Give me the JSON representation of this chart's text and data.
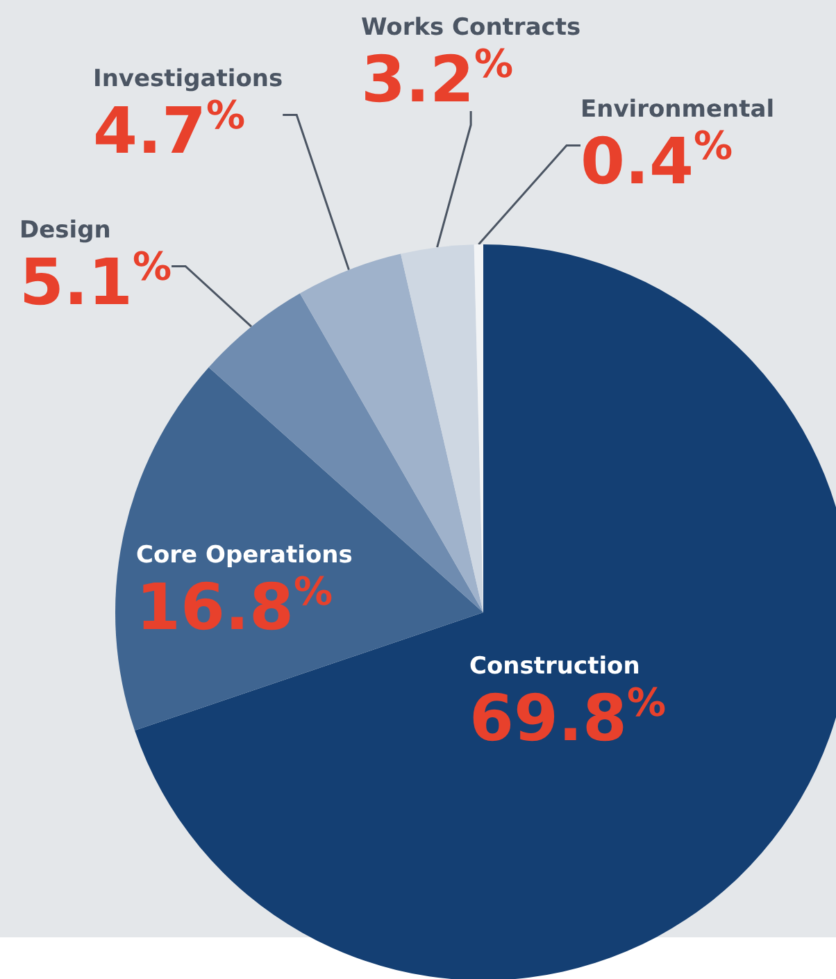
{
  "chart_data": {
    "type": "pie",
    "categories": [
      "Construction",
      "Core Operations",
      "Design",
      "Investigations",
      "Works Contracts",
      "Environmental"
    ],
    "values": [
      69.8,
      16.8,
      5.1,
      4.7,
      3.2,
      0.4
    ],
    "colors": [
      "#143f73",
      "#3f6591",
      "#6f8cb0",
      "#9fb2cb",
      "#ced7e2",
      "#f2f4f6"
    ],
    "value_labels": [
      "69.8%",
      "16.8%",
      "5.1%",
      "4.7%",
      "3.2%",
      "0.4%"
    ]
  }
}
